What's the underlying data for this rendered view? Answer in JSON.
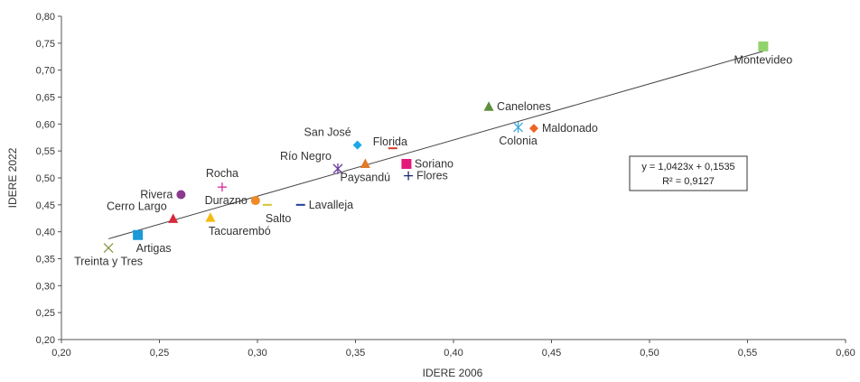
{
  "chart_data": {
    "type": "scatter",
    "xlabel": "IDERE 2006",
    "ylabel": "IDERE 2022",
    "xlim": [
      0.2,
      0.6
    ],
    "ylim": [
      0.2,
      0.8
    ],
    "x_ticks": [
      "0,20",
      "0,25",
      "0,30",
      "0,35",
      "0,40",
      "0,45",
      "0,50",
      "0,55",
      "0,60"
    ],
    "y_ticks": [
      "0,20",
      "0,25",
      "0,30",
      "0,35",
      "0,40",
      "0,45",
      "0,50",
      "0,55",
      "0,60",
      "0,65",
      "0,70",
      "0,75",
      "0,80"
    ],
    "grid": false,
    "points": [
      {
        "name": "Montevideo",
        "x": 0.558,
        "y": 0.744,
        "marker": "square",
        "color": "#92d36e",
        "label_pos": "below-center"
      },
      {
        "name": "Canelones",
        "x": 0.418,
        "y": 0.632,
        "marker": "triangle",
        "color": "#5e8e3e",
        "label_pos": "right"
      },
      {
        "name": "Maldonado",
        "x": 0.441,
        "y": 0.592,
        "marker": "diamond",
        "color": "#ee6424",
        "label_pos": "right"
      },
      {
        "name": "Colonia",
        "x": 0.433,
        "y": 0.594,
        "marker": "asterisk",
        "color": "#3aa8e0",
        "label_pos": "below-center"
      },
      {
        "name": "San José",
        "x": 0.351,
        "y": 0.561,
        "marker": "diamond",
        "color": "#1aa8e8",
        "label_pos": "above-left"
      },
      {
        "name": "Florida",
        "x": 0.369,
        "y": 0.555,
        "marker": "dash",
        "color": "#d83a2a",
        "label_pos": "above-right"
      },
      {
        "name": "Río Negro",
        "x": 0.341,
        "y": 0.517,
        "marker": "asterisk",
        "color": "#6a3c9e",
        "label_pos": "above-left"
      },
      {
        "name": "Paysandú",
        "x": 0.355,
        "y": 0.526,
        "marker": "triangle",
        "color": "#e07a28",
        "label_pos": "below-center"
      },
      {
        "name": "Soriano",
        "x": 0.376,
        "y": 0.526,
        "marker": "square",
        "color": "#e21b7b",
        "label_pos": "right"
      },
      {
        "name": "Flores",
        "x": 0.377,
        "y": 0.504,
        "marker": "plus",
        "color": "#1a2a6c",
        "label_pos": "right"
      },
      {
        "name": "Rocha",
        "x": 0.282,
        "y": 0.483,
        "marker": "plus",
        "color": "#d4299a",
        "label_pos": "above-center"
      },
      {
        "name": "Rivera",
        "x": 0.261,
        "y": 0.469,
        "marker": "circle",
        "color": "#8b3a8f",
        "label_pos": "left"
      },
      {
        "name": "Durazno",
        "x": 0.299,
        "y": 0.458,
        "marker": "circle",
        "color": "#ef8a26",
        "label_pos": "left"
      },
      {
        "name": "Salto",
        "x": 0.305,
        "y": 0.45,
        "marker": "dash",
        "color": "#d8c530",
        "label_pos": "below-right"
      },
      {
        "name": "Lavalleja",
        "x": 0.322,
        "y": 0.45,
        "marker": "dash",
        "color": "#1f3d99",
        "label_pos": "right"
      },
      {
        "name": "Cerro Largo",
        "x": 0.257,
        "y": 0.424,
        "marker": "triangle",
        "color": "#d8293b",
        "label_pos": "above-left"
      },
      {
        "name": "Tacuarembó",
        "x": 0.276,
        "y": 0.426,
        "marker": "triangle",
        "color": "#f5b90f",
        "label_pos": "below-right"
      },
      {
        "name": "Artigas",
        "x": 0.239,
        "y": 0.394,
        "marker": "square",
        "color": "#1a9ad8",
        "label_pos": "below-right"
      },
      {
        "name": "Treinta y Tres",
        "x": 0.224,
        "y": 0.37,
        "marker": "x",
        "color": "#8a9440",
        "label_pos": "below-center"
      }
    ],
    "trendline": {
      "slope": 1.0423,
      "intercept": 0.1535,
      "x_start": 0.224,
      "x_end": 0.558,
      "equation": "y = 1,0423x + 0,1535",
      "r_squared": "R² = 0,9127"
    }
  }
}
